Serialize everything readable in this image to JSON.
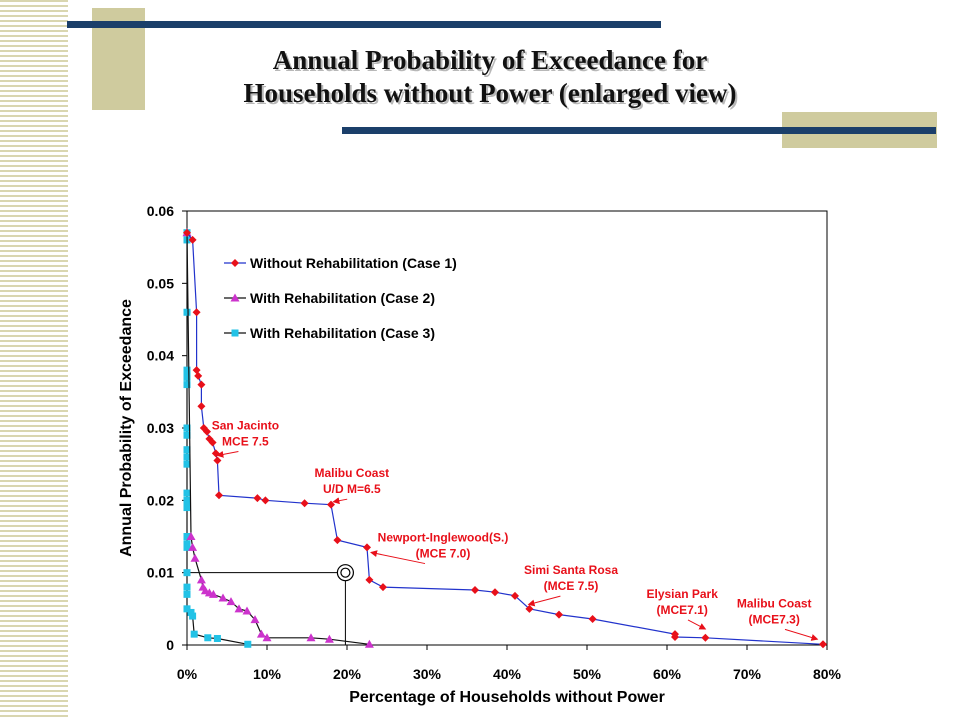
{
  "slide": {
    "title_line1": "Annual Probability of Exceedance for",
    "title_line2": "Households without Power (enlarged view)",
    "accent_navy": "#1b3f6a",
    "accent_khaki": "#cfcb9e"
  },
  "chart_data": {
    "type": "line",
    "title": "",
    "xlabel": "Percentage of Households without Power",
    "ylabel": "Annual Probability of Exceedance",
    "xlim": [
      0,
      80
    ],
    "ylim": [
      0,
      0.06
    ],
    "x_ticks": [
      "0%",
      "10%",
      "20%",
      "30%",
      "40%",
      "50%",
      "60%",
      "70%",
      "80%"
    ],
    "y_ticks": [
      "0",
      "0.01",
      "0.02",
      "0.03",
      "0.04",
      "0.05",
      "0.06"
    ],
    "legend_position": "top-left",
    "series": [
      {
        "name": "Without Rehabilitation (Case 1)",
        "color": "#e8101a",
        "line_color": "#2233cc",
        "marker": "diamond",
        "points": [
          [
            0,
            0.057
          ],
          [
            0.7,
            0.056
          ],
          [
            1.2,
            0.046
          ],
          [
            1.2,
            0.038
          ],
          [
            1.4,
            0.0372
          ],
          [
            1.8,
            0.036
          ],
          [
            1.8,
            0.033
          ],
          [
            2.1,
            0.03
          ],
          [
            2.5,
            0.0295
          ],
          [
            2.8,
            0.0285
          ],
          [
            3.2,
            0.028
          ],
          [
            3.6,
            0.0265
          ],
          [
            3.8,
            0.0255
          ],
          [
            4.0,
            0.0207
          ],
          [
            8.8,
            0.0203
          ],
          [
            9.8,
            0.02
          ],
          [
            14.7,
            0.0196
          ],
          [
            18.0,
            0.0194
          ],
          [
            18.8,
            0.0145
          ],
          [
            22.5,
            0.0135
          ],
          [
            22.8,
            0.009
          ],
          [
            24.5,
            0.008
          ],
          [
            36.0,
            0.0076
          ],
          [
            38.5,
            0.0073
          ],
          [
            41.0,
            0.0068
          ],
          [
            42.8,
            0.005
          ],
          [
            46.5,
            0.0042
          ],
          [
            50.7,
            0.0036
          ],
          [
            61.0,
            0.0015
          ],
          [
            61.0,
            0.0011
          ],
          [
            64.8,
            0.001
          ],
          [
            79.5,
            0.0001
          ]
        ]
      },
      {
        "name": "With Rehabilitation (Case 2)",
        "color": "#cc33cc",
        "line_color": "#111111",
        "marker": "triangle",
        "points": [
          [
            0,
            0.057
          ],
          [
            0.5,
            0.015
          ],
          [
            0.7,
            0.0135
          ],
          [
            1.0,
            0.012
          ],
          [
            1.8,
            0.009
          ],
          [
            2.0,
            0.008
          ],
          [
            2.3,
            0.0075
          ],
          [
            2.8,
            0.0072
          ],
          [
            3.3,
            0.007
          ],
          [
            4.5,
            0.0065
          ],
          [
            5.5,
            0.006
          ],
          [
            6.5,
            0.005
          ],
          [
            7.5,
            0.0047
          ],
          [
            8.5,
            0.0035
          ],
          [
            9.3,
            0.0015
          ],
          [
            10.0,
            0.001
          ],
          [
            15.5,
            0.001
          ],
          [
            17.8,
            0.0008
          ],
          [
            22.8,
            0.0001
          ]
        ]
      },
      {
        "name": "With Rehabilitation (Case 3)",
        "color": "#22c2e6",
        "line_color": "#111111",
        "marker": "square",
        "points": [
          [
            0,
            0.057
          ],
          [
            0,
            0.056
          ],
          [
            0,
            0.046
          ],
          [
            0,
            0.038
          ],
          [
            0,
            0.0375
          ],
          [
            0,
            0.037
          ],
          [
            0,
            0.036
          ],
          [
            0,
            0.03
          ],
          [
            0,
            0.029
          ],
          [
            0,
            0.027
          ],
          [
            0,
            0.026
          ],
          [
            0,
            0.025
          ],
          [
            0,
            0.021
          ],
          [
            0,
            0.02
          ],
          [
            0,
            0.0195
          ],
          [
            0,
            0.019
          ],
          [
            0,
            0.015
          ],
          [
            0,
            0.014
          ],
          [
            0,
            0.0135
          ],
          [
            0,
            0.01
          ],
          [
            0,
            0.008
          ],
          [
            0,
            0.007
          ],
          [
            0,
            0.005
          ],
          [
            0.5,
            0.0045
          ],
          [
            0.7,
            0.004
          ],
          [
            0.9,
            0.0015
          ],
          [
            2.6,
            0.001
          ],
          [
            3.8,
            0.0009
          ],
          [
            7.6,
            0.0001
          ]
        ]
      }
    ],
    "annotations": [
      {
        "lines": [
          "San Jacinto",
          "MCE 7.5"
        ],
        "color": "#e8101a",
        "text_at": [
          7.3,
          0.0298
        ],
        "arrow_to": [
          3.8,
          0.0262
        ]
      },
      {
        "lines": [
          "Malibu Coast",
          "U/D M=6.5"
        ],
        "color": "#e8101a",
        "text_at": [
          20.6,
          0.0232
        ],
        "arrow_to": [
          18.3,
          0.0198
        ]
      },
      {
        "lines": [
          "Newport-Inglewood(S.)",
          "(MCE 7.0)"
        ],
        "color": "#e8101a",
        "text_at": [
          32.0,
          0.0143
        ],
        "arrow_to": [
          23.0,
          0.0128
        ]
      },
      {
        "lines": [
          "Simi Santa Rosa",
          "(MCE 7.5)"
        ],
        "color": "#e8101a",
        "text_at": [
          48.0,
          0.0098
        ],
        "arrow_to": [
          42.7,
          0.0056
        ]
      },
      {
        "lines": [
          "Elysian Park",
          "(MCE7.1)"
        ],
        "color": "#e8101a",
        "text_at": [
          61.9,
          0.0065
        ],
        "arrow_to": [
          64.8,
          0.0022
        ]
      },
      {
        "lines": [
          "Malibu Coast",
          "(MCE7.3)"
        ],
        "color": "#e8101a",
        "text_at": [
          73.4,
          0.0052
        ],
        "arrow_to": [
          78.8,
          0.0008
        ]
      }
    ],
    "reference_marker": {
      "x": 19.8,
      "y": 0.01
    }
  }
}
